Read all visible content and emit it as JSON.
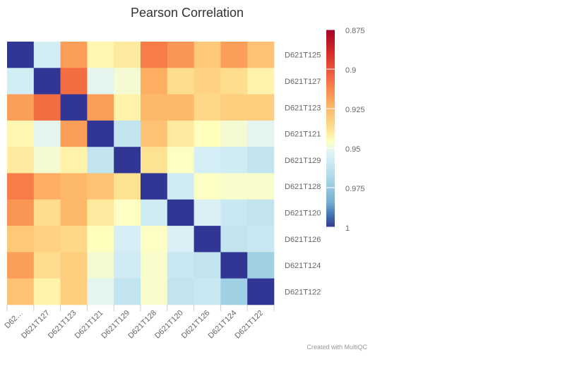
{
  "chart_data": {
    "type": "heatmap",
    "title": "Pearson Correlation",
    "row_labels": [
      "D621T125",
      "D621T127",
      "D621T123",
      "D621T121",
      "D621T129",
      "D621T128",
      "D621T120",
      "D621T126",
      "D621T124",
      "D621T122"
    ],
    "col_labels": [
      "D62…",
      "D621T127",
      "D621T123",
      "D621T121",
      "D621T129",
      "D621T128",
      "D621T120",
      "D621T126",
      "D621T124",
      "D621T122"
    ],
    "values": [
      [
        1.0,
        0.957,
        0.918,
        0.943,
        0.94,
        0.91,
        0.916,
        0.93,
        0.918,
        0.928
      ],
      [
        0.957,
        1.0,
        0.906,
        0.952,
        0.948,
        0.922,
        0.937,
        0.933,
        0.937,
        0.942
      ],
      [
        0.918,
        0.906,
        1.0,
        0.918,
        0.942,
        0.925,
        0.925,
        0.935,
        0.932,
        0.932
      ],
      [
        0.943,
        0.952,
        0.918,
        1.0,
        0.962,
        0.928,
        0.94,
        0.945,
        0.948,
        0.952
      ],
      [
        0.94,
        0.948,
        0.942,
        0.962,
        1.0,
        0.938,
        0.946,
        0.956,
        0.958,
        0.962
      ],
      [
        0.91,
        0.922,
        0.925,
        0.928,
        0.938,
        1.0,
        0.958,
        0.946,
        0.947,
        0.947
      ],
      [
        0.916,
        0.937,
        0.925,
        0.94,
        0.946,
        0.958,
        1.0,
        0.955,
        0.96,
        0.962
      ],
      [
        0.93,
        0.933,
        0.935,
        0.945,
        0.956,
        0.946,
        0.955,
        1.0,
        0.962,
        0.96
      ],
      [
        0.918,
        0.937,
        0.932,
        0.948,
        0.958,
        0.947,
        0.96,
        0.962,
        1.0,
        0.972
      ],
      [
        0.928,
        0.942,
        0.932,
        0.952,
        0.962,
        0.947,
        0.962,
        0.96,
        0.972,
        1.0
      ]
    ],
    "color_scale": {
      "min": 0.875,
      "max": 1,
      "ticks": [
        "0.875",
        "0.9",
        "0.925",
        "0.95",
        "0.975",
        "1"
      ],
      "stops": [
        {
          "value": 0.875,
          "color": "#a50026"
        },
        {
          "value": 0.8906,
          "color": "#d73027"
        },
        {
          "value": 0.9063,
          "color": "#f46d43"
        },
        {
          "value": 0.9219,
          "color": "#fdae61"
        },
        {
          "value": 0.9375,
          "color": "#fee090"
        },
        {
          "value": 0.9453,
          "color": "#ffffbf"
        },
        {
          "value": 0.9531,
          "color": "#e0f3f8"
        },
        {
          "value": 0.9688,
          "color": "#abd9e9"
        },
        {
          "value": 0.9844,
          "color": "#74add1"
        },
        {
          "value": 0.9922,
          "color": "#4575b4"
        },
        {
          "value": 1,
          "color": "#313695"
        }
      ]
    }
  },
  "credits": "Created with MultiQC"
}
